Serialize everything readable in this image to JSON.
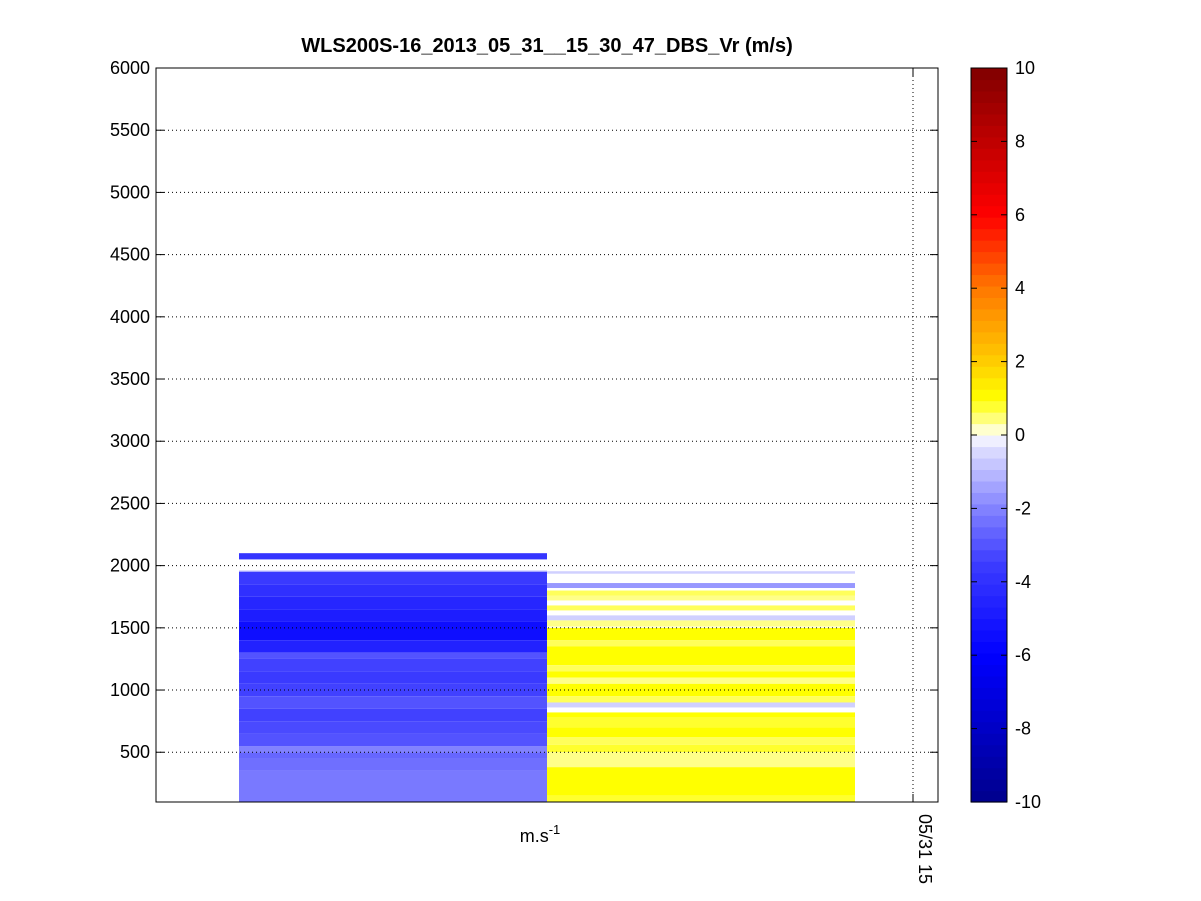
{
  "chart_data": {
    "type": "heatmap",
    "title": "WLS200S-16_2013_05_31__15_30_47_DBS_Vr (m/s)",
    "xlabel": "m.s",
    "xlabel_superscript": "-1",
    "x_tick_labels": [
      "05/31 15"
    ],
    "y_ticks": [
      500,
      1000,
      1500,
      2000,
      2500,
      3000,
      3500,
      4000,
      4500,
      5000,
      5500,
      6000
    ],
    "ylim": [
      100,
      6000
    ],
    "grid": true,
    "colorbar": {
      "position": "right",
      "ticks": [
        -10,
        -8,
        -6,
        -4,
        -2,
        0,
        2,
        4,
        6,
        8,
        10
      ],
      "clim": [
        -10,
        10
      ]
    },
    "series": [
      {
        "column": 0,
        "segments": [
          {
            "y0": 2050,
            "y1": 2100,
            "value": -3.8
          },
          {
            "y0": 1950,
            "y1": 1960,
            "value": -1.2
          },
          {
            "y0": 1850,
            "y1": 1950,
            "value": -3.6
          },
          {
            "y0": 1750,
            "y1": 1850,
            "value": -4.0
          },
          {
            "y0": 1650,
            "y1": 1750,
            "value": -4.4
          },
          {
            "y0": 1550,
            "y1": 1650,
            "value": -4.8
          },
          {
            "y0": 1400,
            "y1": 1550,
            "value": -5.4
          },
          {
            "y0": 1300,
            "y1": 1400,
            "value": -4.6
          },
          {
            "y0": 1250,
            "y1": 1300,
            "value": -3.0
          },
          {
            "y0": 1150,
            "y1": 1250,
            "value": -3.4
          },
          {
            "y0": 1050,
            "y1": 1150,
            "value": -3.6
          },
          {
            "y0": 950,
            "y1": 1050,
            "value": -3.4
          },
          {
            "y0": 850,
            "y1": 950,
            "value": -3.0
          },
          {
            "y0": 750,
            "y1": 850,
            "value": -3.4
          },
          {
            "y0": 650,
            "y1": 750,
            "value": -3.2
          },
          {
            "y0": 550,
            "y1": 650,
            "value": -3.0
          },
          {
            "y0": 500,
            "y1": 550,
            "value": -2.0
          },
          {
            "y0": 450,
            "y1": 500,
            "value": -2.6
          },
          {
            "y0": 350,
            "y1": 450,
            "value": -2.4
          },
          {
            "y0": 100,
            "y1": 350,
            "value": -2.2
          }
        ]
      },
      {
        "column": 1,
        "segments": [
          {
            "y0": 1935,
            "y1": 1955,
            "value": -0.6
          },
          {
            "y0": 1820,
            "y1": 1860,
            "value": -1.6
          },
          {
            "y0": 1760,
            "y1": 1800,
            "value": 0.6
          },
          {
            "y0": 1720,
            "y1": 1760,
            "value": 0.4
          },
          {
            "y0": 1640,
            "y1": 1680,
            "value": 0.6
          },
          {
            "y0": 1560,
            "y1": 1600,
            "value": -0.6
          },
          {
            "y0": 1510,
            "y1": 1560,
            "value": 0.4
          },
          {
            "y0": 1400,
            "y1": 1500,
            "value": 1.0
          },
          {
            "y0": 1350,
            "y1": 1400,
            "value": 0.6
          },
          {
            "y0": 1200,
            "y1": 1350,
            "value": 1.0
          },
          {
            "y0": 1150,
            "y1": 1200,
            "value": 0.6
          },
          {
            "y0": 1100,
            "y1": 1150,
            "value": 1.0
          },
          {
            "y0": 1050,
            "y1": 1100,
            "value": 0.4
          },
          {
            "y0": 950,
            "y1": 1050,
            "value": 1.0
          },
          {
            "y0": 900,
            "y1": 950,
            "value": 0.6
          },
          {
            "y0": 860,
            "y1": 900,
            "value": -0.6
          },
          {
            "y0": 780,
            "y1": 820,
            "value": 1.0
          },
          {
            "y0": 700,
            "y1": 780,
            "value": 0.8
          },
          {
            "y0": 620,
            "y1": 700,
            "value": 1.0
          },
          {
            "y0": 560,
            "y1": 620,
            "value": 0.6
          },
          {
            "y0": 500,
            "y1": 560,
            "value": 0.8
          },
          {
            "y0": 380,
            "y1": 500,
            "value": 0.4
          },
          {
            "y0": 150,
            "y1": 380,
            "value": 1.0
          },
          {
            "y0": 100,
            "y1": 150,
            "value": 0.8
          }
        ]
      }
    ]
  }
}
